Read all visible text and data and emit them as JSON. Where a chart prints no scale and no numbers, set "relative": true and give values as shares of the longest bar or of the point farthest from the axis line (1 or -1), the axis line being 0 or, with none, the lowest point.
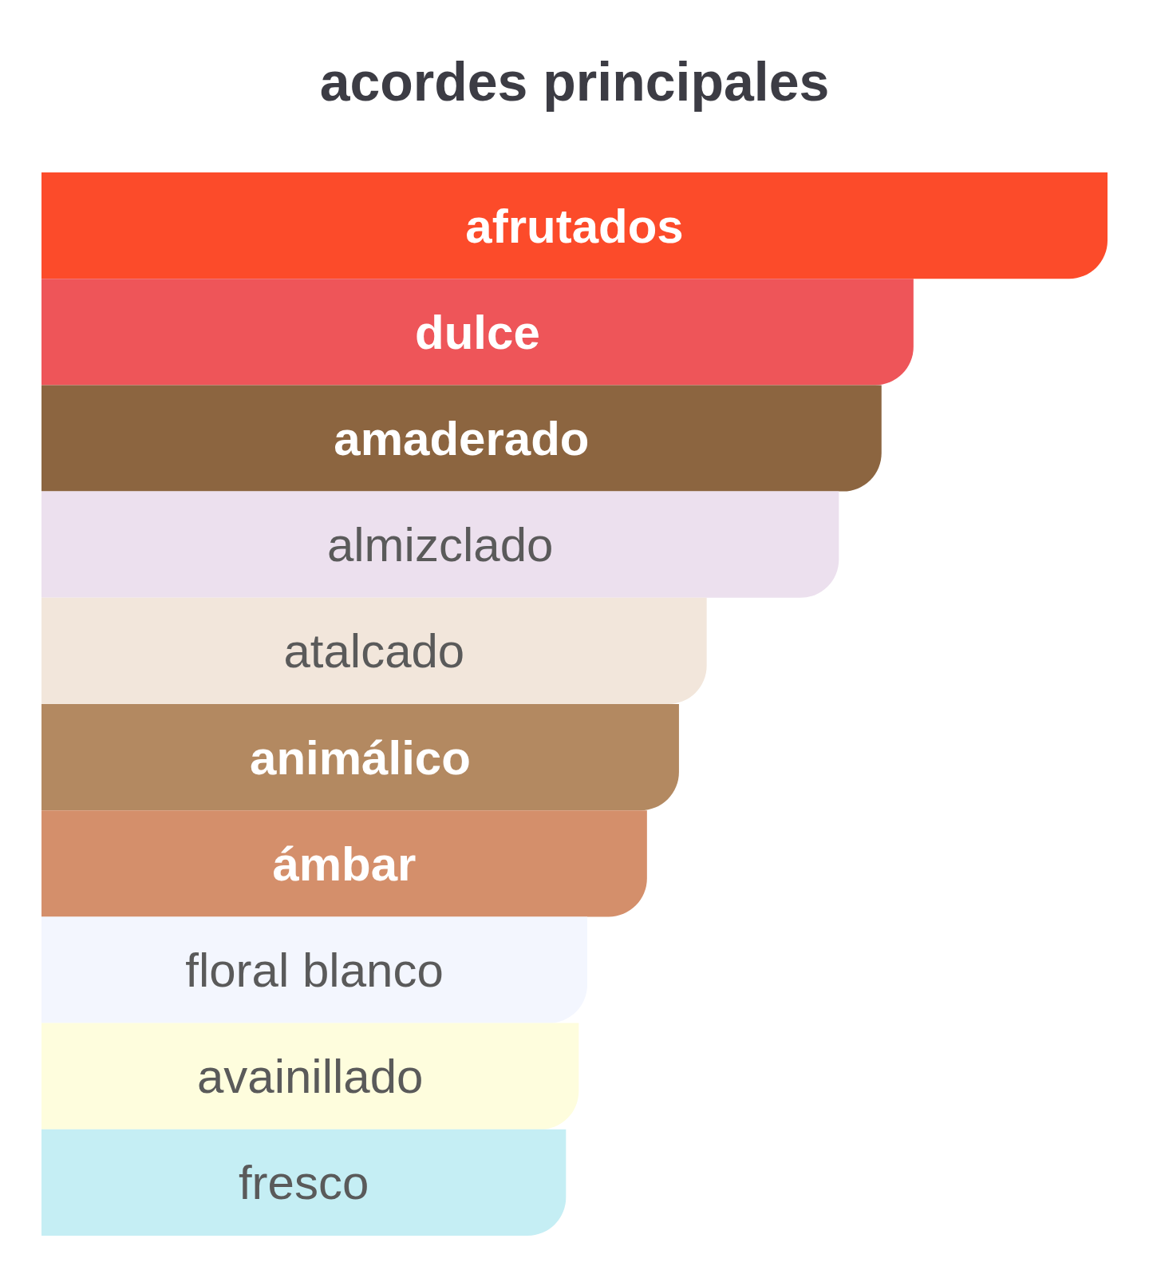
{
  "chart_data": {
    "type": "bar",
    "orientation": "horizontal",
    "relative": true,
    "title": "acordes principales",
    "categories": [
      "afrutados",
      "dulce",
      "amaderado",
      "almizclado",
      "atalcado",
      "animálico",
      "ámbar",
      "floral blanco",
      "avainillado",
      "fresco"
    ],
    "values": [
      1,
      0.818,
      0.788,
      0.748,
      0.624,
      0.598,
      0.568,
      0.512,
      0.504,
      0.492
    ],
    "colors": [
      "#fc4b2a",
      "#ee5559",
      "#8c6540",
      "#ece0ee",
      "#f2e6db",
      "#b38961",
      "#d48f6b",
      "#f3f6fe",
      "#fefddd",
      "#c5eef4"
    ]
  }
}
